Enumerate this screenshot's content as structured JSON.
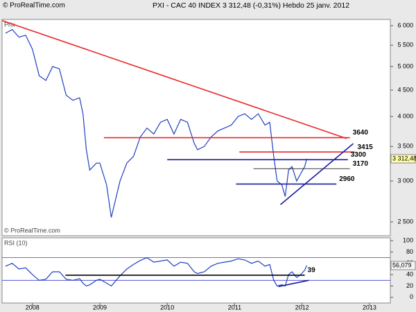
{
  "header": {
    "source": "© ProRealTime.com",
    "title": "PXI - CAC 40 INDEX    3 312,48 (-0,31%)    Hebdo  25 janv. 2012"
  },
  "chart_data": [
    {
      "type": "line",
      "y_label": "Prix",
      "log_scale": true,
      "color": "#1f3fbf",
      "x": [
        2007.6,
        2007.7,
        2007.8,
        2007.9,
        2008.0,
        2008.1,
        2008.2,
        2008.3,
        2008.4,
        2008.5,
        2008.6,
        2008.7,
        2008.75,
        2008.8,
        2008.85,
        2008.95,
        2009.0,
        2009.1,
        2009.17,
        2009.3,
        2009.4,
        2009.5,
        2009.6,
        2009.7,
        2009.8,
        2009.9,
        2010.0,
        2010.1,
        2010.2,
        2010.3,
        2010.4,
        2010.45,
        2010.55,
        2010.65,
        2010.75,
        2010.85,
        2010.95,
        2011.05,
        2011.15,
        2011.25,
        2011.35,
        2011.45,
        2011.52,
        2011.58,
        2011.63,
        2011.7,
        2011.75,
        2011.8,
        2011.85,
        2011.92,
        2011.98,
        2012.04,
        2012.07
      ],
      "values": [
        5800,
        5900,
        5700,
        5750,
        5400,
        4800,
        4700,
        5000,
        4950,
        4400,
        4300,
        4350,
        4050,
        3450,
        3150,
        3250,
        3250,
        2950,
        2550,
        3000,
        3250,
        3350,
        3650,
        3800,
        3700,
        3900,
        3950,
        3700,
        3950,
        3900,
        3550,
        3450,
        3500,
        3650,
        3750,
        3800,
        3850,
        4000,
        4050,
        3950,
        4050,
        3850,
        3900,
        3350,
        3000,
        2950,
        2800,
        3150,
        3200,
        3000,
        3100,
        3200,
        3312.48
      ],
      "last_price": {
        "value": 3312.48,
        "label": "3 312,48"
      },
      "xlim": [
        2007.55,
        2013.31
      ],
      "ylim": [
        2350,
        6170
      ],
      "yticks": [
        {
          "value": 2500,
          "label": "2 500"
        },
        {
          "value": 3000,
          "label": "3 000"
        },
        {
          "value": 3500,
          "label": "3 500"
        },
        {
          "value": 4000,
          "label": "4 000"
        },
        {
          "value": 4500,
          "label": "4 500"
        },
        {
          "value": 5000,
          "label": "5 000"
        },
        {
          "value": 5500,
          "label": "5 500"
        },
        {
          "value": 6000,
          "label": "6 000"
        }
      ],
      "levels": [
        {
          "value": 3640,
          "color": "#e8262a",
          "x": [
            2009.06,
            2012.71
          ]
        },
        {
          "value": 3415,
          "color": "#e8262a",
          "x": [
            2011.07,
            2012.78
          ]
        },
        {
          "value": 3300,
          "color": "#1a1aa0",
          "x": [
            2010.0,
            2012.68
          ]
        },
        {
          "value": 3170,
          "color": "#000000",
          "x": [
            2011.28,
            2012.71
          ]
        },
        {
          "value": 2960,
          "color": "#1a1aa0",
          "x": [
            2011.02,
            2012.51
          ]
        }
      ],
      "trendlines": [
        {
          "color": "#e8262a",
          "x": [
            2007.55,
            2012.66
          ],
          "y": [
            6140,
            3627
          ]
        },
        {
          "color": "#1a1aa0",
          "x": [
            2011.68,
            2012.76
          ],
          "y": [
            2700,
            3545
          ]
        }
      ]
    },
    {
      "type": "line",
      "y_label": "RSI (10)",
      "log_scale": false,
      "color": "#1f3fbf",
      "x": [
        2007.6,
        2007.7,
        2007.8,
        2007.9,
        2008.0,
        2008.1,
        2008.2,
        2008.3,
        2008.4,
        2008.5,
        2008.6,
        2008.7,
        2008.75,
        2008.8,
        2008.85,
        2008.95,
        2009.0,
        2009.1,
        2009.17,
        2009.3,
        2009.4,
        2009.5,
        2009.6,
        2009.7,
        2009.8,
        2009.9,
        2010.0,
        2010.1,
        2010.2,
        2010.3,
        2010.4,
        2010.45,
        2010.55,
        2010.65,
        2010.75,
        2010.85,
        2010.95,
        2011.05,
        2011.15,
        2011.25,
        2011.35,
        2011.45,
        2011.52,
        2011.58,
        2011.63,
        2011.7,
        2011.75,
        2011.8,
        2011.85,
        2011.92,
        2011.98,
        2012.04,
        2012.07
      ],
      "values": [
        55,
        60,
        50,
        52,
        40,
        30,
        32,
        45,
        45,
        32,
        30,
        33,
        25,
        20,
        22,
        30,
        32,
        25,
        20,
        38,
        50,
        58,
        65,
        70,
        62,
        64,
        66,
        55,
        62,
        60,
        45,
        42,
        45,
        55,
        60,
        62,
        64,
        68,
        66,
        60,
        64,
        55,
        58,
        30,
        20,
        22,
        20,
        40,
        45,
        35,
        40,
        48,
        56.079
      ],
      "last_value": {
        "value": 56.079,
        "label": "56,079"
      },
      "xlim": [
        2007.55,
        2013.31
      ],
      "ylim": [
        -10,
        105
      ],
      "xticks": [
        2008,
        2009,
        2010,
        2011,
        2012,
        2013
      ],
      "yticks": [
        0,
        20,
        40,
        60,
        80,
        100
      ],
      "bands": [
        30,
        70
      ],
      "levels": [
        {
          "value": 39,
          "color": "#000000",
          "x": [
            2008.49,
            2012.04
          ]
        }
      ],
      "trendlines": [
        {
          "color": "#1a1aa0",
          "x": [
            2011.65,
            2012.1
          ],
          "y": [
            19,
            30
          ]
        }
      ]
    }
  ]
}
